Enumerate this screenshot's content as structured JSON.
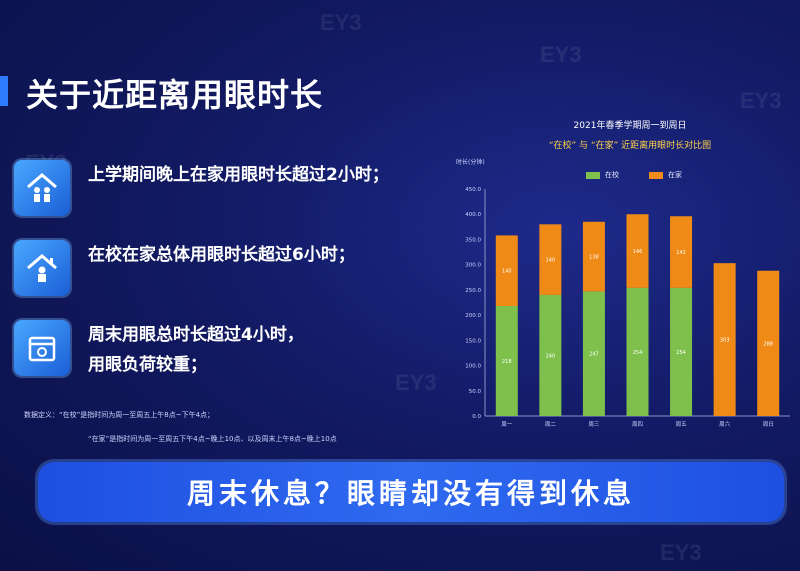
{
  "page": {
    "title": "关于近距离用眼时长",
    "watermark": "EY3"
  },
  "points": [
    {
      "icon": "home-family-icon",
      "lines": [
        "上学期间晚上在家用眼时长超过2小时；"
      ]
    },
    {
      "icon": "school-home-icon",
      "lines": [
        "在校在家总体用眼时长超过6小时；"
      ]
    },
    {
      "icon": "weekend-calendar-icon",
      "lines": [
        "周末用眼总时长超过4小时，",
        "用眼负荷较重；"
      ]
    }
  ],
  "definitions": [
    "数据定义：“在校”是指时间为周一至周五上午8点~下午4点；",
    "“在家”是指时间为周一至周五下午4点~晚上10点、以及周末上午8点~晚上10点"
  ],
  "banner": {
    "text": "周末休息？眼睛却没有得到休息"
  },
  "chart_data": {
    "type": "bar",
    "stacked": true,
    "title_line1": "2021年春季学期周一到周日",
    "title_line2": "“在校” 与 “在家” 近距离用眼时长对比图",
    "ylabel": "时长(分钟)",
    "ylim": [
      0,
      450
    ],
    "yticks": [
      "0.0",
      "50.0",
      "100.0",
      "150.0",
      "200.0",
      "250.0",
      "300.0",
      "350.0",
      "400.0",
      "450.0"
    ],
    "categories": [
      "周一",
      "周二",
      "周三",
      "周四",
      "周五",
      "周六",
      "周日"
    ],
    "series": [
      {
        "name": "在校",
        "color": "#7fc04d",
        "values": [
          218,
          240,
          247,
          254,
          254,
          0,
          0
        ],
        "labels": [
          "218",
          "240",
          "247",
          "254",
          "254",
          "",
          ""
        ]
      },
      {
        "name": "在家",
        "color": "#f08a16",
        "values": [
          140,
          140,
          138,
          146,
          142,
          303,
          288
        ],
        "labels": [
          "140",
          "140",
          "138",
          "146",
          "142",
          "303",
          "288"
        ]
      }
    ],
    "grid": false,
    "legend_position": "top"
  }
}
